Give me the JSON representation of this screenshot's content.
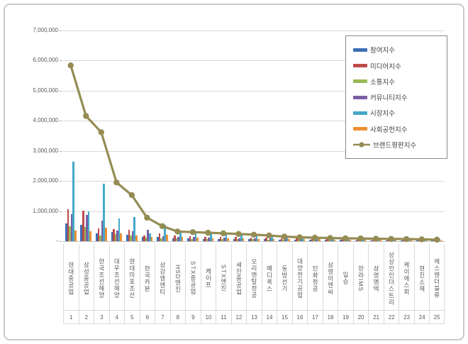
{
  "chart_data": {
    "type": "bar",
    "note": "combo chart: 6 bar series + 1 line series (brand reputation index), values in index points",
    "categories": [
      "현대중공업",
      "삼성중공업",
      "한국조선해양",
      "대우조선해양",
      "현대미포조선",
      "한국카본",
      "삼강엠앤티",
      "HSD엔진",
      "STX중공업",
      "케이프",
      "STX엔진",
      "세진중공업",
      "오리엔탈정공",
      "메디콕스",
      "동방선기",
      "대양전기공업",
      "인화정공",
      "삼영이엔씨",
      "일승",
      "한라IMS",
      "삼영엠텍",
      "상상인인더스트리",
      "케이에스피",
      "현진소재",
      "에스앤더블류"
    ],
    "rank_labels": [
      "1",
      "2",
      "3",
      "4",
      "5",
      "6",
      "7",
      "8",
      "9",
      "10",
      "11",
      "12",
      "13",
      "14",
      "15",
      "16",
      "17",
      "18",
      "19",
      "20",
      "21",
      "22",
      "23",
      "24",
      "25"
    ],
    "ylim": [
      0,
      7000000
    ],
    "ytick_labels": [
      "7,000,000",
      "6,000,000",
      "5,000,000",
      "4,000,000",
      "3,000,000",
      "2,000,000",
      "1,000,000",
      "-"
    ],
    "grid": true,
    "legend_position": "upper right",
    "series": [
      {
        "name": "참여지수",
        "kind": "bar",
        "color": "#3f6fb5",
        "values": [
          600000,
          550000,
          250000,
          300000,
          210000,
          150000,
          130000,
          100000,
          90000,
          80000,
          80000,
          70000,
          60000,
          60000,
          50000,
          50000,
          40000,
          40000,
          40000,
          30000,
          30000,
          30000,
          30000,
          20000,
          20000
        ]
      },
      {
        "name": "미디어지수",
        "kind": "bar",
        "color": "#be4b48",
        "values": [
          1050000,
          1020000,
          430000,
          400000,
          380000,
          200000,
          250000,
          180000,
          160000,
          150000,
          140000,
          130000,
          120000,
          110000,
          100000,
          90000,
          90000,
          80000,
          80000,
          70000,
          70000,
          60000,
          60000,
          50000,
          50000
        ]
      },
      {
        "name": "소통지수",
        "kind": "bar",
        "color": "#98b954",
        "values": [
          500000,
          470000,
          200000,
          230000,
          190000,
          120000,
          100000,
          90000,
          80000,
          70000,
          70000,
          60000,
          60000,
          50000,
          50000,
          40000,
          40000,
          40000,
          30000,
          30000,
          30000,
          30000,
          20000,
          20000,
          20000
        ]
      },
      {
        "name": "커뮤니티지수",
        "kind": "bar",
        "color": "#7a5fa5",
        "values": [
          900000,
          880000,
          680000,
          350000,
          330000,
          380000,
          160000,
          140000,
          130000,
          120000,
          110000,
          100000,
          90000,
          90000,
          80000,
          70000,
          70000,
          60000,
          60000,
          50000,
          100000,
          50000,
          40000,
          40000,
          40000
        ]
      },
      {
        "name": "시장지수",
        "kind": "bar",
        "color": "#45a8c8",
        "values": [
          2650000,
          1000000,
          1900000,
          750000,
          800000,
          260000,
          550000,
          350000,
          300000,
          280000,
          250000,
          220000,
          200000,
          180000,
          150000,
          140000,
          120000,
          110000,
          100000,
          100000,
          90000,
          80000,
          80000,
          70000,
          70000
        ]
      },
      {
        "name": "사회공헌지수",
        "kind": "bar",
        "color": "#ee8f33",
        "values": [
          350000,
          320000,
          450000,
          250000,
          190000,
          130000,
          210000,
          150000,
          120000,
          100000,
          100000,
          90000,
          80000,
          80000,
          70000,
          60000,
          60000,
          50000,
          50000,
          50000,
          40000,
          40000,
          40000,
          30000,
          30000
        ]
      },
      {
        "name": "브랜드평판지수",
        "kind": "line",
        "color": "#958c54",
        "values": [
          5840000,
          4160000,
          3620000,
          1950000,
          1530000,
          780000,
          500000,
          320000,
          300000,
          280000,
          260000,
          240000,
          215000,
          190000,
          150000,
          130000,
          115000,
          105000,
          95000,
          90000,
          80000,
          75000,
          70000,
          60000,
          50000
        ]
      }
    ]
  },
  "colors": {
    "gridline": "#d9d9d9",
    "axis": "#bfbfbf",
    "label_text": "#595959",
    "legend_border": "#898989",
    "frame_border": "#c9c9c9"
  }
}
